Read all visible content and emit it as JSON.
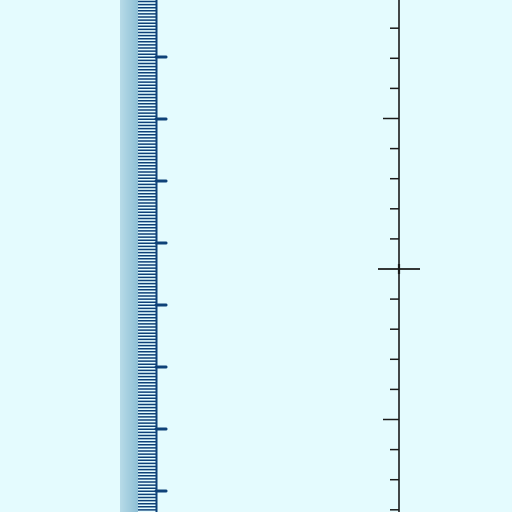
{
  "colors": {
    "background": "#e4fbfe",
    "ruler_bar_light": "#b7dbe8",
    "ruler_bar_mid": "#8fc0d6",
    "ruler_ticks": "#0e4178",
    "axis_line": "#1a1a1a"
  },
  "left_ruler": {
    "orientation": "vertical",
    "minor_ticks_per_major": 20
  },
  "right_ruler": {
    "orientation": "vertical",
    "minor_ticks_per_major": 5,
    "has_center_crosshair": true
  }
}
